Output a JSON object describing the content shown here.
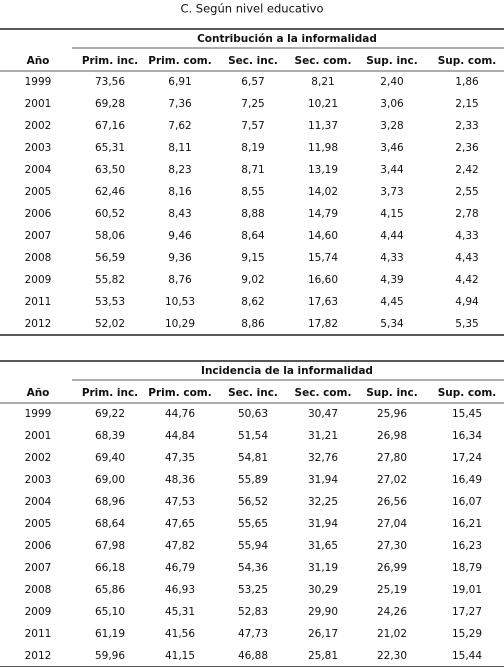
{
  "title": "C. Según nivel educativo",
  "tables": [
    {
      "caption": "Contribución a la informalidad",
      "columns": [
        "Año",
        "Prim. inc.",
        "Prim. com.",
        "Sec. inc.",
        "Sec. com.",
        "Sup. inc.",
        "Sup. com."
      ],
      "rows": [
        [
          "1999",
          "73,56",
          "6,91",
          "6,57",
          "8,21",
          "2,40",
          "1,86"
        ],
        [
          "2001",
          "69,28",
          "7,36",
          "7,25",
          "10,21",
          "3,06",
          "2,15"
        ],
        [
          "2002",
          "67,16",
          "7,62",
          "7,57",
          "11,37",
          "3,28",
          "2,33"
        ],
        [
          "2003",
          "65,31",
          "8,11",
          "8,19",
          "11,98",
          "3,46",
          "2,36"
        ],
        [
          "2004",
          "63,50",
          "8,23",
          "8,71",
          "13,19",
          "3,44",
          "2,42"
        ],
        [
          "2005",
          "62,46",
          "8,16",
          "8,55",
          "14,02",
          "3,73",
          "2,55"
        ],
        [
          "2006",
          "60,52",
          "8,43",
          "8,88",
          "14,79",
          "4,15",
          "2,78"
        ],
        [
          "2007",
          "58,06",
          "9,46",
          "8,64",
          "14,60",
          "4,44",
          "4,33"
        ],
        [
          "2008",
          "56,59",
          "9,36",
          "9,15",
          "15,74",
          "4,33",
          "4,43"
        ],
        [
          "2009",
          "55,82",
          "8,76",
          "9,02",
          "16,60",
          "4,39",
          "4,42"
        ],
        [
          "2011",
          "53,53",
          "10,53",
          "8,62",
          "17,63",
          "4,45",
          "4,94"
        ],
        [
          "2012",
          "52,02",
          "10,29",
          "8,86",
          "17,82",
          "5,34",
          "5,35"
        ]
      ]
    },
    {
      "caption": "Incidencia de la informalidad",
      "columns": [
        "Año",
        "Prim. inc.",
        "Prim. com.",
        "Sec. inc.",
        "Sec. com.",
        "Sup. inc.",
        "Sup. com."
      ],
      "rows": [
        [
          "1999",
          "69,22",
          "44,76",
          "50,63",
          "30,47",
          "25,96",
          "15,45"
        ],
        [
          "2001",
          "68,39",
          "44,84",
          "51,54",
          "31,21",
          "26,98",
          "16,34"
        ],
        [
          "2002",
          "69,40",
          "47,35",
          "54,81",
          "32,76",
          "27,80",
          "17,24"
        ],
        [
          "2003",
          "69,00",
          "48,36",
          "55,89",
          "31,94",
          "27,02",
          "16,49"
        ],
        [
          "2004",
          "68,96",
          "47,53",
          "56,52",
          "32,25",
          "26,56",
          "16,07"
        ],
        [
          "2005",
          "68,64",
          "47,65",
          "55,65",
          "31,94",
          "27,04",
          "16,21"
        ],
        [
          "2006",
          "67,98",
          "47,82",
          "55,94",
          "31,65",
          "27,30",
          "16,23"
        ],
        [
          "2007",
          "66,18",
          "46,79",
          "54,36",
          "31,19",
          "26,99",
          "18,79"
        ],
        [
          "2008",
          "65,86",
          "46,93",
          "53,25",
          "30,29",
          "25,19",
          "19,01"
        ],
        [
          "2009",
          "65,10",
          "45,31",
          "52,83",
          "29,90",
          "24,26",
          "17,27"
        ],
        [
          "2011",
          "61,19",
          "41,56",
          "47,73",
          "26,17",
          "21,02",
          "15,29"
        ],
        [
          "2012",
          "59,96",
          "41,15",
          "46,88",
          "25,81",
          "22,30",
          "15,44"
        ]
      ]
    }
  ]
}
